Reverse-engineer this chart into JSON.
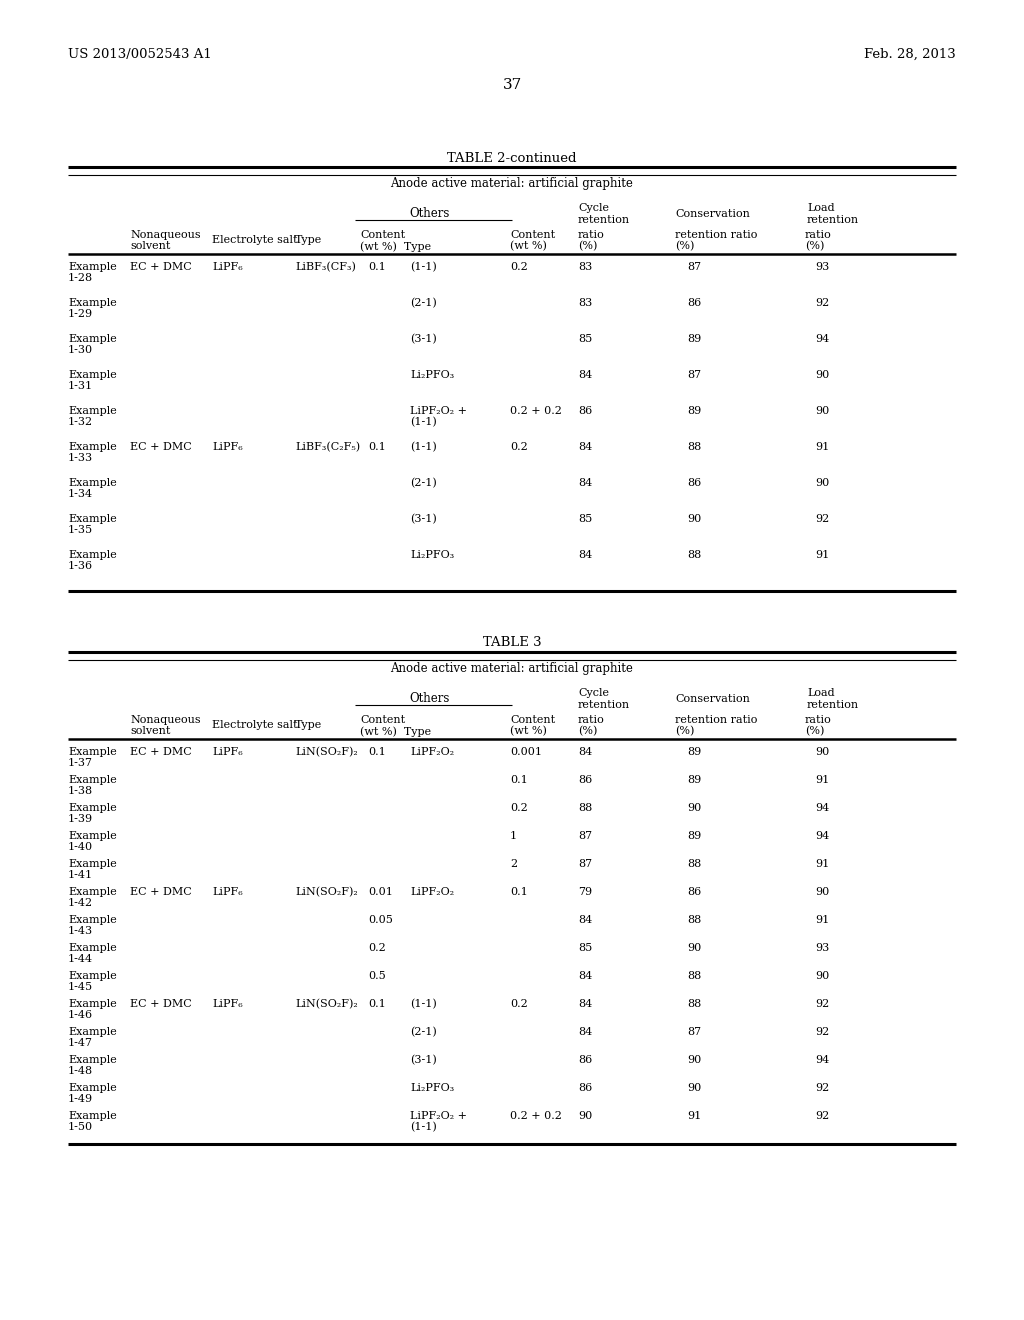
{
  "page_number": "37",
  "patent_left": "US 2013/0052543 A1",
  "patent_right": "Feb. 28, 2013",
  "table2_title": "TABLE 2-continued",
  "table2_subtitle": "Anode active material: artificial graphite",
  "table3_title": "TABLE 3",
  "table3_subtitle": "Anode active material: artificial graphite",
  "table2_rows": [
    {
      "example": "Example",
      "num": "1-28",
      "solvent": "EC + DMC",
      "salt": "LiPF₆",
      "type": "LiBF₃(CF₃)",
      "content": "0.1",
      "type2": "(1-1)",
      "content2": "0.2",
      "cycle": "83",
      "conservation": "87",
      "load": "93"
    },
    {
      "example": "Example",
      "num": "1-29",
      "solvent": "",
      "salt": "",
      "type": "",
      "content": "",
      "type2": "(2-1)",
      "content2": "",
      "cycle": "83",
      "conservation": "86",
      "load": "92"
    },
    {
      "example": "Example",
      "num": "1-30",
      "solvent": "",
      "salt": "",
      "type": "",
      "content": "",
      "type2": "(3-1)",
      "content2": "",
      "cycle": "85",
      "conservation": "89",
      "load": "94"
    },
    {
      "example": "Example",
      "num": "1-31",
      "solvent": "",
      "salt": "",
      "type": "",
      "content": "",
      "type2": "Li₂PFO₃",
      "content2": "",
      "cycle": "84",
      "conservation": "87",
      "load": "90"
    },
    {
      "example": "Example",
      "num": "1-32",
      "solvent": "",
      "salt": "",
      "type": "",
      "content": "",
      "type2": "LiPF₂O₂ +",
      "type2b": "(1-1)",
      "content2": "0.2 + 0.2",
      "cycle": "86",
      "conservation": "89",
      "load": "90"
    },
    {
      "example": "Example",
      "num": "1-33",
      "solvent": "EC + DMC",
      "salt": "LiPF₆",
      "type": "LiBF₃(C₂F₅)",
      "content": "0.1",
      "type2": "(1-1)",
      "content2": "0.2",
      "cycle": "84",
      "conservation": "88",
      "load": "91"
    },
    {
      "example": "Example",
      "num": "1-34",
      "solvent": "",
      "salt": "",
      "type": "",
      "content": "",
      "type2": "(2-1)",
      "content2": "",
      "cycle": "84",
      "conservation": "86",
      "load": "90"
    },
    {
      "example": "Example",
      "num": "1-35",
      "solvent": "",
      "salt": "",
      "type": "",
      "content": "",
      "type2": "(3-1)",
      "content2": "",
      "cycle": "85",
      "conservation": "90",
      "load": "92"
    },
    {
      "example": "Example",
      "num": "1-36",
      "solvent": "",
      "salt": "",
      "type": "",
      "content": "",
      "type2": "Li₂PFO₃",
      "content2": "",
      "cycle": "84",
      "conservation": "88",
      "load": "91"
    }
  ],
  "table3_rows": [
    {
      "example": "Example",
      "num": "1-37",
      "solvent": "EC + DMC",
      "salt": "LiPF₆",
      "type": "LiN(SO₂F)₂",
      "content": "0.1",
      "type2": "LiPF₂O₂",
      "content2": "0.001",
      "cycle": "84",
      "conservation": "89",
      "load": "90"
    },
    {
      "example": "Example",
      "num": "1-38",
      "solvent": "",
      "salt": "",
      "type": "",
      "content": "",
      "type2": "",
      "content2": "0.1",
      "cycle": "86",
      "conservation": "89",
      "load": "91"
    },
    {
      "example": "Example",
      "num": "1-39",
      "solvent": "",
      "salt": "",
      "type": "",
      "content": "",
      "type2": "",
      "content2": "0.2",
      "cycle": "88",
      "conservation": "90",
      "load": "94"
    },
    {
      "example": "Example",
      "num": "1-40",
      "solvent": "",
      "salt": "",
      "type": "",
      "content": "",
      "type2": "",
      "content2": "1",
      "cycle": "87",
      "conservation": "89",
      "load": "94"
    },
    {
      "example": "Example",
      "num": "1-41",
      "solvent": "",
      "salt": "",
      "type": "",
      "content": "",
      "type2": "",
      "content2": "2",
      "cycle": "87",
      "conservation": "88",
      "load": "91"
    },
    {
      "example": "Example",
      "num": "1-42",
      "solvent": "EC + DMC",
      "salt": "LiPF₆",
      "type": "LiN(SO₂F)₂",
      "content": "0.01",
      "type2": "LiPF₂O₂",
      "content2": "0.1",
      "cycle": "79",
      "conservation": "86",
      "load": "90"
    },
    {
      "example": "Example",
      "num": "1-43",
      "solvent": "",
      "salt": "",
      "type": "",
      "content": "0.05",
      "type2": "",
      "content2": "",
      "cycle": "84",
      "conservation": "88",
      "load": "91"
    },
    {
      "example": "Example",
      "num": "1-44",
      "solvent": "",
      "salt": "",
      "type": "",
      "content": "0.2",
      "type2": "",
      "content2": "",
      "cycle": "85",
      "conservation": "90",
      "load": "93"
    },
    {
      "example": "Example",
      "num": "1-45",
      "solvent": "",
      "salt": "",
      "type": "",
      "content": "0.5",
      "type2": "",
      "content2": "",
      "cycle": "84",
      "conservation": "88",
      "load": "90"
    },
    {
      "example": "Example",
      "num": "1-46",
      "solvent": "EC + DMC",
      "salt": "LiPF₆",
      "type": "LiN(SO₂F)₂",
      "content": "0.1",
      "type2": "(1-1)",
      "content2": "0.2",
      "cycle": "84",
      "conservation": "88",
      "load": "92"
    },
    {
      "example": "Example",
      "num": "1-47",
      "solvent": "",
      "salt": "",
      "type": "",
      "content": "",
      "type2": "(2-1)",
      "content2": "",
      "cycle": "84",
      "conservation": "87",
      "load": "92"
    },
    {
      "example": "Example",
      "num": "1-48",
      "solvent": "",
      "salt": "",
      "type": "",
      "content": "",
      "type2": "(3-1)",
      "content2": "",
      "cycle": "86",
      "conservation": "90",
      "load": "94"
    },
    {
      "example": "Example",
      "num": "1-49",
      "solvent": "",
      "salt": "",
      "type": "",
      "content": "",
      "type2": "Li₂PFO₃",
      "content2": "",
      "cycle": "86",
      "conservation": "90",
      "load": "92"
    },
    {
      "example": "Example",
      "num": "1-50",
      "solvent": "",
      "salt": "",
      "type": "",
      "content": "",
      "type2": "LiPF₂O₂ +",
      "type2b": "(1-1)",
      "content2": "0.2 + 0.2",
      "cycle": "90",
      "conservation": "91",
      "load": "92"
    }
  ]
}
